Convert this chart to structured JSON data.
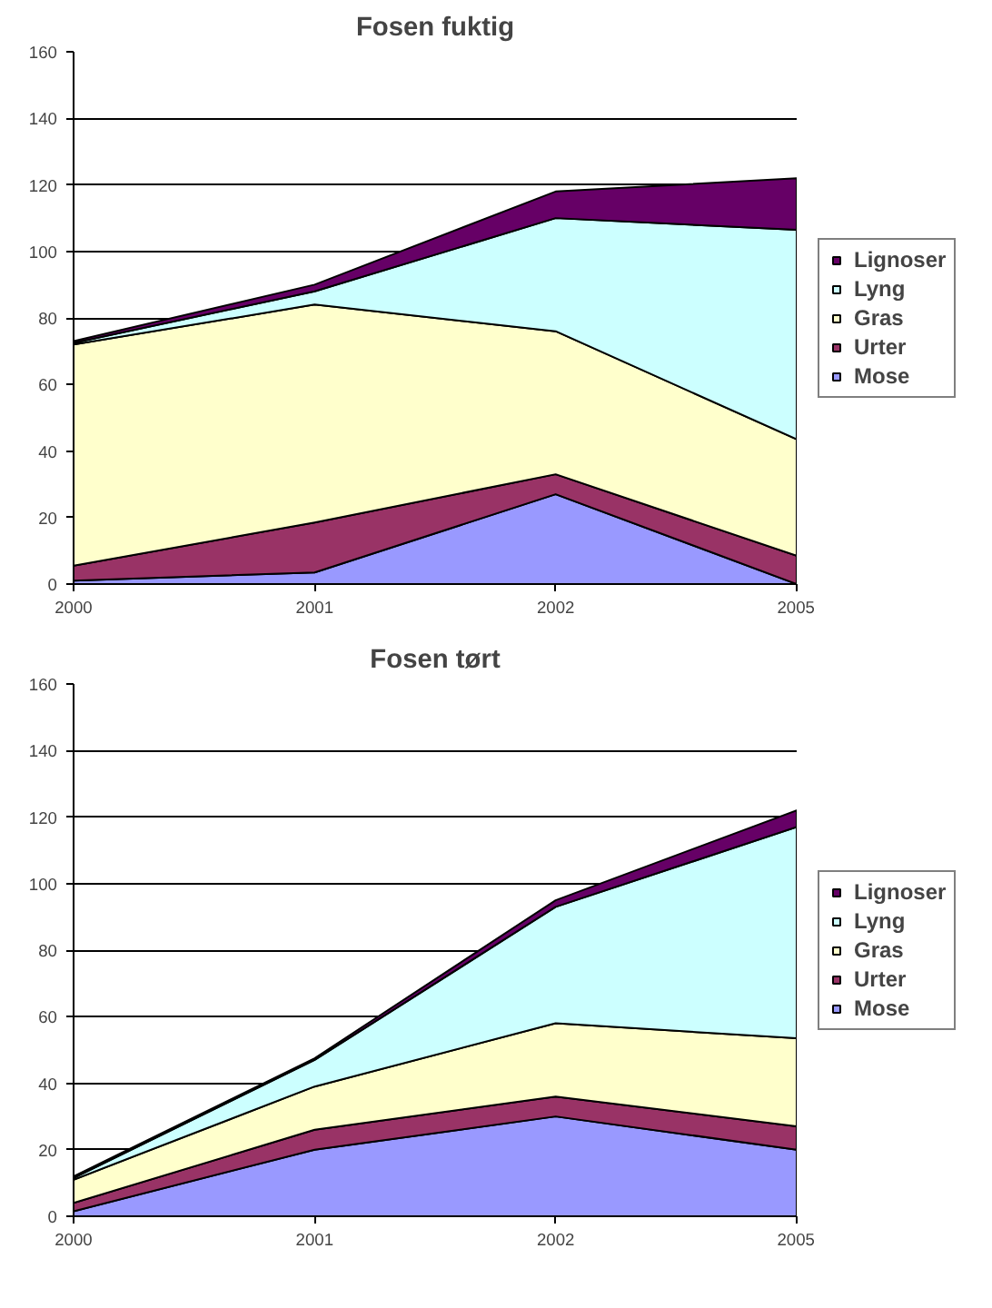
{
  "chart_data": [
    {
      "type": "area",
      "title": "Fosen fuktig",
      "stacked": true,
      "categories": [
        "2000",
        "2001",
        "2002",
        "2005"
      ],
      "ylim": [
        0,
        160
      ],
      "yticks": [
        0,
        20,
        40,
        60,
        80,
        100,
        120,
        140,
        160
      ],
      "grid": "y",
      "legend": "right",
      "series": [
        {
          "name": "Mose",
          "color": "#9999ff",
          "values": [
            1,
            3.5,
            27,
            0
          ]
        },
        {
          "name": "Urter",
          "color": "#993366",
          "values": [
            4.5,
            15,
            6,
            8.5
          ]
        },
        {
          "name": "Gras",
          "color": "#ffffcc",
          "values": [
            66.5,
            65.5,
            43,
            35
          ]
        },
        {
          "name": "Lyng",
          "color": "#ccffff",
          "values": [
            0.5,
            4,
            34,
            63
          ]
        },
        {
          "name": "Lignoser",
          "color": "#660066",
          "values": [
            0.5,
            2,
            8,
            15.5
          ]
        }
      ]
    },
    {
      "type": "area",
      "title": "Fosen tørt",
      "stacked": true,
      "categories": [
        "2000",
        "2001",
        "2002",
        "2005"
      ],
      "ylim": [
        0,
        160
      ],
      "yticks": [
        0,
        20,
        40,
        60,
        80,
        100,
        120,
        140,
        160
      ],
      "grid": "y",
      "legend": "right",
      "series": [
        {
          "name": "Mose",
          "color": "#9999ff",
          "values": [
            1.5,
            20,
            30,
            20
          ]
        },
        {
          "name": "Urter",
          "color": "#993366",
          "values": [
            2.5,
            6,
            6,
            7
          ]
        },
        {
          "name": "Gras",
          "color": "#ffffcc",
          "values": [
            7,
            13,
            22,
            26.5
          ]
        },
        {
          "name": "Lyng",
          "color": "#ccffff",
          "values": [
            0.5,
            8,
            35,
            63.5
          ]
        },
        {
          "name": "Lignoser",
          "color": "#660066",
          "values": [
            0.5,
            0.5,
            2,
            5
          ]
        }
      ]
    }
  ]
}
